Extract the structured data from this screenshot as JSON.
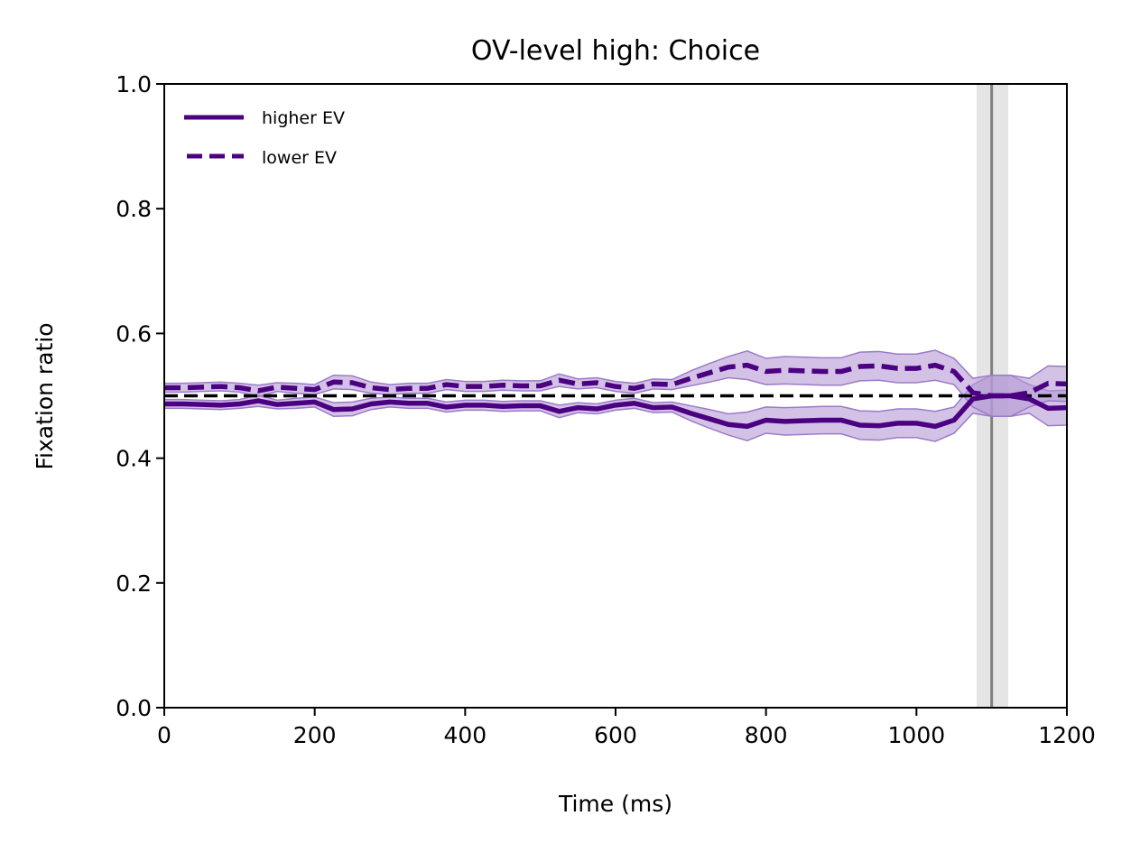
{
  "chart_data": {
    "type": "line",
    "title": "OV-level high: Choice",
    "xlabel": "Time (ms)",
    "ylabel": "Fixation ratio",
    "xlim": [
      0,
      1200
    ],
    "ylim": [
      0.0,
      1.0
    ],
    "xticks": [
      0,
      200,
      400,
      600,
      800,
      1000,
      1200
    ],
    "xtick_labels": [
      "0",
      "200",
      "400",
      "600",
      "800",
      "1000",
      "1200"
    ],
    "yticks": [
      0.0,
      0.2,
      0.4,
      0.6,
      0.8,
      1.0
    ],
    "ytick_labels": [
      "0.0",
      "0.2",
      "0.4",
      "0.6",
      "0.8",
      "1.0"
    ],
    "grid": false,
    "legend_position": "top-left",
    "reference_line": {
      "y": 0.5,
      "style": "dashed",
      "color": "#000000"
    },
    "vertical_marker": {
      "x": 1100,
      "band": [
        1080,
        1122
      ],
      "line_color": "#808080",
      "band_color": "#e5e5e5"
    },
    "series_color": "#4b0082",
    "band_color": "#b59ad6",
    "x": [
      0,
      25,
      50,
      75,
      100,
      125,
      150,
      175,
      200,
      225,
      250,
      275,
      300,
      325,
      350,
      375,
      400,
      425,
      450,
      475,
      500,
      525,
      550,
      575,
      600,
      625,
      650,
      675,
      700,
      725,
      750,
      775,
      800,
      825,
      850,
      875,
      900,
      925,
      950,
      975,
      1000,
      1025,
      1050,
      1075,
      1100,
      1125,
      1150,
      1175,
      1200
    ],
    "series": [
      {
        "name": "higher EV",
        "style": "solid",
        "values": [
          0.487,
          0.487,
          0.486,
          0.485,
          0.487,
          0.492,
          0.486,
          0.488,
          0.49,
          0.478,
          0.479,
          0.487,
          0.49,
          0.488,
          0.488,
          0.482,
          0.485,
          0.485,
          0.483,
          0.484,
          0.484,
          0.475,
          0.481,
          0.479,
          0.485,
          0.488,
          0.481,
          0.482,
          0.472,
          0.463,
          0.454,
          0.451,
          0.461,
          0.459,
          0.46,
          0.461,
          0.461,
          0.453,
          0.452,
          0.456,
          0.456,
          0.451,
          0.461,
          0.495,
          0.5,
          0.5,
          0.495,
          0.48,
          0.481
        ],
        "ci_lower": [
          0.48,
          0.48,
          0.479,
          0.478,
          0.48,
          0.483,
          0.479,
          0.48,
          0.482,
          0.467,
          0.468,
          0.478,
          0.482,
          0.48,
          0.48,
          0.474,
          0.477,
          0.477,
          0.475,
          0.476,
          0.476,
          0.465,
          0.473,
          0.471,
          0.477,
          0.48,
          0.473,
          0.474,
          0.46,
          0.448,
          0.437,
          0.428,
          0.44,
          0.437,
          0.438,
          0.439,
          0.439,
          0.43,
          0.429,
          0.433,
          0.433,
          0.427,
          0.44,
          0.472,
          0.467,
          0.467,
          0.472,
          0.452,
          0.453
        ],
        "ci_upper": [
          0.494,
          0.494,
          0.493,
          0.492,
          0.494,
          0.501,
          0.493,
          0.496,
          0.498,
          0.489,
          0.49,
          0.496,
          0.498,
          0.496,
          0.496,
          0.49,
          0.493,
          0.493,
          0.491,
          0.492,
          0.492,
          0.485,
          0.489,
          0.487,
          0.493,
          0.496,
          0.489,
          0.49,
          0.484,
          0.478,
          0.471,
          0.474,
          0.482,
          0.481,
          0.482,
          0.483,
          0.483,
          0.476,
          0.475,
          0.479,
          0.479,
          0.475,
          0.482,
          0.518,
          0.533,
          0.533,
          0.518,
          0.508,
          0.509
        ]
      },
      {
        "name": "lower EV",
        "style": "dashed",
        "values": [
          0.513,
          0.513,
          0.514,
          0.515,
          0.513,
          0.508,
          0.514,
          0.512,
          0.51,
          0.522,
          0.521,
          0.513,
          0.51,
          0.512,
          0.512,
          0.518,
          0.515,
          0.515,
          0.517,
          0.516,
          0.516,
          0.525,
          0.519,
          0.521,
          0.515,
          0.512,
          0.519,
          0.518,
          0.528,
          0.537,
          0.546,
          0.549,
          0.539,
          0.541,
          0.54,
          0.539,
          0.539,
          0.547,
          0.548,
          0.544,
          0.544,
          0.549,
          0.539,
          0.505,
          0.5,
          0.5,
          0.505,
          0.52,
          0.519
        ],
        "ci_lower": [
          0.506,
          0.506,
          0.507,
          0.508,
          0.506,
          0.499,
          0.507,
          0.504,
          0.502,
          0.511,
          0.51,
          0.504,
          0.502,
          0.504,
          0.504,
          0.51,
          0.507,
          0.507,
          0.509,
          0.508,
          0.508,
          0.515,
          0.511,
          0.513,
          0.507,
          0.504,
          0.511,
          0.51,
          0.516,
          0.522,
          0.529,
          0.526,
          0.518,
          0.519,
          0.518,
          0.517,
          0.517,
          0.524,
          0.525,
          0.521,
          0.521,
          0.525,
          0.518,
          0.482,
          0.467,
          0.467,
          0.482,
          0.492,
          0.491
        ],
        "ci_upper": [
          0.52,
          0.52,
          0.521,
          0.522,
          0.52,
          0.517,
          0.521,
          0.52,
          0.518,
          0.533,
          0.532,
          0.522,
          0.518,
          0.52,
          0.52,
          0.526,
          0.523,
          0.523,
          0.525,
          0.524,
          0.524,
          0.535,
          0.527,
          0.529,
          0.523,
          0.52,
          0.527,
          0.526,
          0.54,
          0.552,
          0.563,
          0.572,
          0.56,
          0.563,
          0.562,
          0.561,
          0.561,
          0.57,
          0.571,
          0.567,
          0.567,
          0.573,
          0.56,
          0.528,
          0.533,
          0.533,
          0.528,
          0.548,
          0.547
        ]
      }
    ]
  }
}
